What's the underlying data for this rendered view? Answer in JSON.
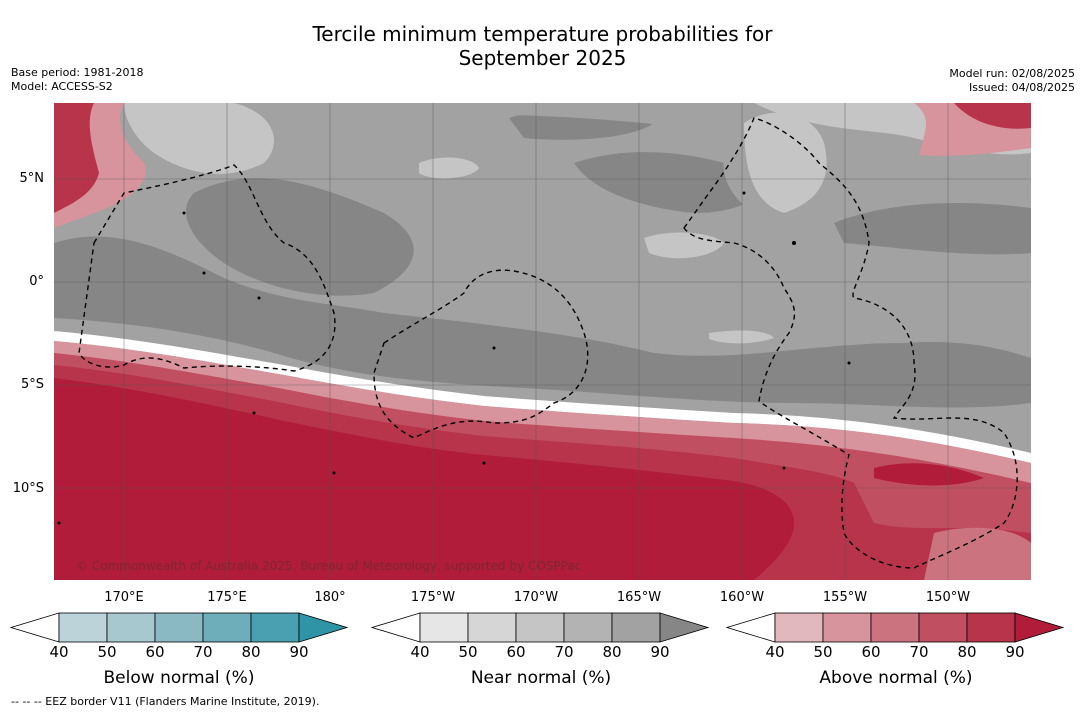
{
  "title_line1": "Tercile minimum temperature probabilities for",
  "title_line2": "September 2025",
  "base_period": "Base period: 1981-2018",
  "model": "Model: ACCESS-S2",
  "model_run": "Model run: 02/08/2025",
  "issued": "Issued: 04/08/2025",
  "lat_labels": [
    "5°N",
    "0°",
    "5°S",
    "10°S"
  ],
  "lon_labels": [
    "170°E",
    "175°E",
    "180°",
    "175°W",
    "170°W",
    "165°W",
    "160°W",
    "155°W",
    "150°W"
  ],
  "copyright": "© Commonwealth of Australia 2025, Bureau of Meteorology, supported by COSPPac",
  "footnote": "--  --  -- EEZ border V11 (Flanders Marine Institute, 2019).",
  "colorbars": [
    {
      "title": "Below normal (%)",
      "ticks": [
        "40",
        "50",
        "60",
        "70",
        "80",
        "90"
      ],
      "colors": [
        "#ffffff",
        "#bcd3da",
        "#a6c8ce",
        "#8bb9c3",
        "#6eaebb",
        "#4aa0b0",
        "#2e94a6"
      ]
    },
    {
      "title": "Near normal (%)",
      "ticks": [
        "40",
        "50",
        "60",
        "70",
        "80",
        "90"
      ],
      "colors": [
        "#ffffff",
        "#e6e6e6",
        "#d6d6d6",
        "#c5c5c5",
        "#b3b3b3",
        "#a2a2a2",
        "#868686"
      ]
    },
    {
      "title": "Above normal (%)",
      "ticks": [
        "40",
        "50",
        "60",
        "70",
        "80",
        "90"
      ],
      "colors": [
        "#ffffff",
        "#e2b8bf",
        "#d7949d",
        "#cb7480",
        "#c14f62",
        "#b7344b",
        "#b01c39"
      ]
    }
  ],
  "colors": {
    "near_70": "#a2a2a2",
    "near_90": "#868686",
    "near_60": "#c5c5c5",
    "above_90": "#b01c39",
    "above_80": "#b7344b"
  }
}
